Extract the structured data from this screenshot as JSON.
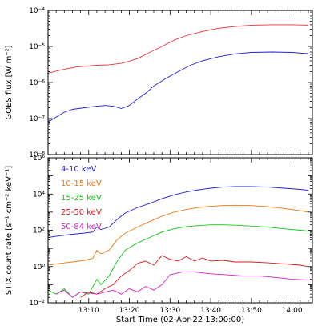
{
  "chart_data": [
    {
      "type": "line",
      "ylabel": "GOES flux [W m⁻²]",
      "yscale": "log",
      "ylim": [
        1e-08,
        0.0001
      ],
      "y_tick_labels": [
        "10⁻⁸",
        "10⁻⁷",
        "10⁻⁶",
        "10⁻⁵",
        "10⁻⁴"
      ],
      "xlim": [
        "13:00",
        "14:05"
      ],
      "grid": false,
      "colors": {
        "red": "#e8303a",
        "blue": "#2020d0"
      },
      "series": [
        {
          "color": "#e8303a",
          "points": [
            [
              0,
              1.8e-06
            ],
            [
              3,
              2.2e-06
            ],
            [
              7,
              2.7e-06
            ],
            [
              12,
              3e-06
            ],
            [
              15,
              3.1e-06
            ],
            [
              18,
              3.4e-06
            ],
            [
              20,
              3.9e-06
            ],
            [
              22,
              4.6e-06
            ],
            [
              25,
              6.8e-06
            ],
            [
              28,
              1e-05
            ],
            [
              31,
              1.5e-05
            ],
            [
              34,
              2e-05
            ],
            [
              38,
              2.6e-05
            ],
            [
              42,
              3.2e-05
            ],
            [
              46,
              3.6e-05
            ],
            [
              50,
              3.9e-05
            ],
            [
              55,
              4e-05
            ],
            [
              60,
              4e-05
            ],
            [
              64,
              3.9e-05
            ]
          ]
        },
        {
          "color": "#2020d0",
          "points": [
            [
              0,
              8e-08
            ],
            [
              2,
              1.1e-07
            ],
            [
              4,
              1.5e-07
            ],
            [
              6,
              1.8e-07
            ],
            [
              9,
              2e-07
            ],
            [
              12,
              2.2e-07
            ],
            [
              14,
              2.3e-07
            ],
            [
              16,
              2.2e-07
            ],
            [
              18,
              1.9e-07
            ],
            [
              20,
              2.3e-07
            ],
            [
              22,
              3.5e-07
            ],
            [
              24,
              5e-07
            ],
            [
              26,
              8e-07
            ],
            [
              29,
              1.3e-06
            ],
            [
              32,
              2e-06
            ],
            [
              35,
              3e-06
            ],
            [
              38,
              4e-06
            ],
            [
              42,
              5.2e-06
            ],
            [
              46,
              6.2e-06
            ],
            [
              50,
              6.8e-06
            ],
            [
              55,
              7e-06
            ],
            [
              60,
              6.8e-06
            ],
            [
              64,
              6.3e-06
            ]
          ]
        }
      ]
    },
    {
      "type": "line",
      "ylabel": "STIX count rate [s⁻¹ cm⁻² keV⁻¹]",
      "xlabel": "Start Time (02-Apr-22 13:00:00)",
      "yscale": "log",
      "ylim": [
        0.01,
        1000000
      ],
      "y_tick_labels": [
        "10⁻²",
        "10⁰",
        "10²",
        "10⁴",
        "10⁶"
      ],
      "xlim": [
        "13:00",
        "14:05"
      ],
      "x_tick_labels": [
        "13:10",
        "13:20",
        "13:30",
        "13:40",
        "13:50",
        "14:00"
      ],
      "grid": false,
      "series": [
        {
          "name": "4-10 keV",
          "color": "#2020d0",
          "points": [
            [
              0,
              40
            ],
            [
              3,
              50
            ],
            [
              6,
              60
            ],
            [
              9,
              70
            ],
            [
              11,
              80
            ],
            [
              12,
              150
            ],
            [
              13,
              110
            ],
            [
              15,
              150
            ],
            [
              17,
              400
            ],
            [
              19,
              900
            ],
            [
              22,
              1800
            ],
            [
              25,
              3000
            ],
            [
              28,
              5500
            ],
            [
              31,
              9000
            ],
            [
              34,
              13000
            ],
            [
              37,
              17000
            ],
            [
              40,
              21000
            ],
            [
              43,
              24000
            ],
            [
              46,
              26000
            ],
            [
              50,
              26000
            ],
            [
              54,
              24000
            ],
            [
              58,
              21000
            ],
            [
              62,
              18000
            ],
            [
              64,
              16000
            ]
          ]
        },
        {
          "name": "10-15 keV",
          "color": "#f07810",
          "points": [
            [
              0,
              1.2
            ],
            [
              3,
              1.5
            ],
            [
              6,
              1.8
            ],
            [
              9,
              2.2
            ],
            [
              11,
              2.8
            ],
            [
              12,
              8
            ],
            [
              13,
              5
            ],
            [
              15,
              8
            ],
            [
              17,
              30
            ],
            [
              19,
              70
            ],
            [
              22,
              150
            ],
            [
              25,
              300
            ],
            [
              28,
              600
            ],
            [
              31,
              1000
            ],
            [
              34,
              1400
            ],
            [
              37,
              1800
            ],
            [
              40,
              2100
            ],
            [
              43,
              2300
            ],
            [
              46,
              2400
            ],
            [
              50,
              2300
            ],
            [
              54,
              2000
            ],
            [
              58,
              1600
            ],
            [
              62,
              1200
            ],
            [
              64,
              1000
            ]
          ]
        },
        {
          "name": "15-25 keV",
          "color": "#10c818",
          "points": [
            [
              0,
              0.05
            ],
            [
              2,
              0.03
            ],
            [
              4,
              0.06
            ],
            [
              6,
              0.02
            ],
            [
              8,
              0.04
            ],
            [
              10,
              0.03
            ],
            [
              12,
              0.2
            ],
            [
              13,
              0.1
            ],
            [
              15,
              0.3
            ],
            [
              17,
              2
            ],
            [
              19,
              8
            ],
            [
              22,
              20
            ],
            [
              25,
              40
            ],
            [
              28,
              80
            ],
            [
              31,
              120
            ],
            [
              34,
              160
            ],
            [
              37,
              180
            ],
            [
              40,
              200
            ],
            [
              43,
              200
            ],
            [
              46,
              190
            ],
            [
              50,
              170
            ],
            [
              54,
              150
            ],
            [
              58,
              120
            ],
            [
              62,
              100
            ],
            [
              64,
              90
            ]
          ]
        },
        {
          "name": "25-50 keV",
          "color": "#d81818",
          "points": [
            [
              8,
              0.02
            ],
            [
              10,
              0.04
            ],
            [
              12,
              0.03
            ],
            [
              14,
              0.06
            ],
            [
              16,
              0.1
            ],
            [
              18,
              0.3
            ],
            [
              20,
              0.6
            ],
            [
              22,
              1.5
            ],
            [
              24,
              2.0
            ],
            [
              26,
              1.2
            ],
            [
              28,
              4
            ],
            [
              30,
              2.5
            ],
            [
              32,
              2.0
            ],
            [
              34,
              3.5
            ],
            [
              36,
              2.0
            ],
            [
              38,
              3.0
            ],
            [
              40,
              2.0
            ],
            [
              43,
              2.2
            ],
            [
              46,
              1.8
            ],
            [
              50,
              1.8
            ],
            [
              54,
              1.6
            ],
            [
              58,
              1.4
            ],
            [
              62,
              1.2
            ],
            [
              64,
              1.0
            ]
          ]
        },
        {
          "name": "50-84 keV",
          "color": "#d020c8",
          "points": [
            [
              2,
              0.03
            ],
            [
              4,
              0.05
            ],
            [
              6,
              0.02
            ],
            [
              8,
              0.04
            ],
            [
              12,
              0.03
            ],
            [
              16,
              0.05
            ],
            [
              18,
              0.03
            ],
            [
              20,
              0.06
            ],
            [
              22,
              0.04
            ],
            [
              24,
              0.08
            ],
            [
              26,
              0.05
            ],
            [
              28,
              0.1
            ],
            [
              30,
              0.35
            ],
            [
              33,
              0.5
            ],
            [
              36,
              0.5
            ],
            [
              40,
              0.4
            ],
            [
              44,
              0.35
            ],
            [
              48,
              0.3
            ],
            [
              52,
              0.3
            ],
            [
              56,
              0.25
            ],
            [
              60,
              0.2
            ],
            [
              64,
              0.18
            ]
          ]
        }
      ]
    }
  ]
}
